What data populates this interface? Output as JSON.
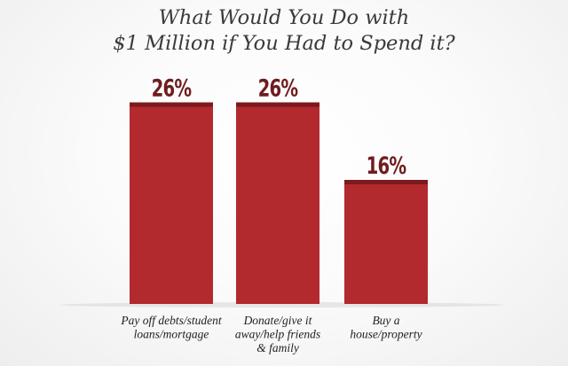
{
  "chart_data": {
    "type": "bar",
    "title": [
      "What Would You Do with",
      "$1 Million if You Had to Spend it?"
    ],
    "categories": [
      [
        "Pay off debts/student",
        "loans/mortgage"
      ],
      [
        "Donate/give it",
        "away/help friends",
        "& family"
      ],
      [
        "Buy a",
        "house/property"
      ]
    ],
    "values": [
      26,
      26,
      16
    ],
    "value_labels": [
      "26%",
      "26%",
      "16%"
    ],
    "ylim": [
      0,
      30
    ],
    "grid": false,
    "legend": "none",
    "colors": {
      "bar": "#b22a2e",
      "bar_top": "#7c1a1d",
      "label": "#6f1d1f",
      "category_text": "#222222"
    }
  }
}
